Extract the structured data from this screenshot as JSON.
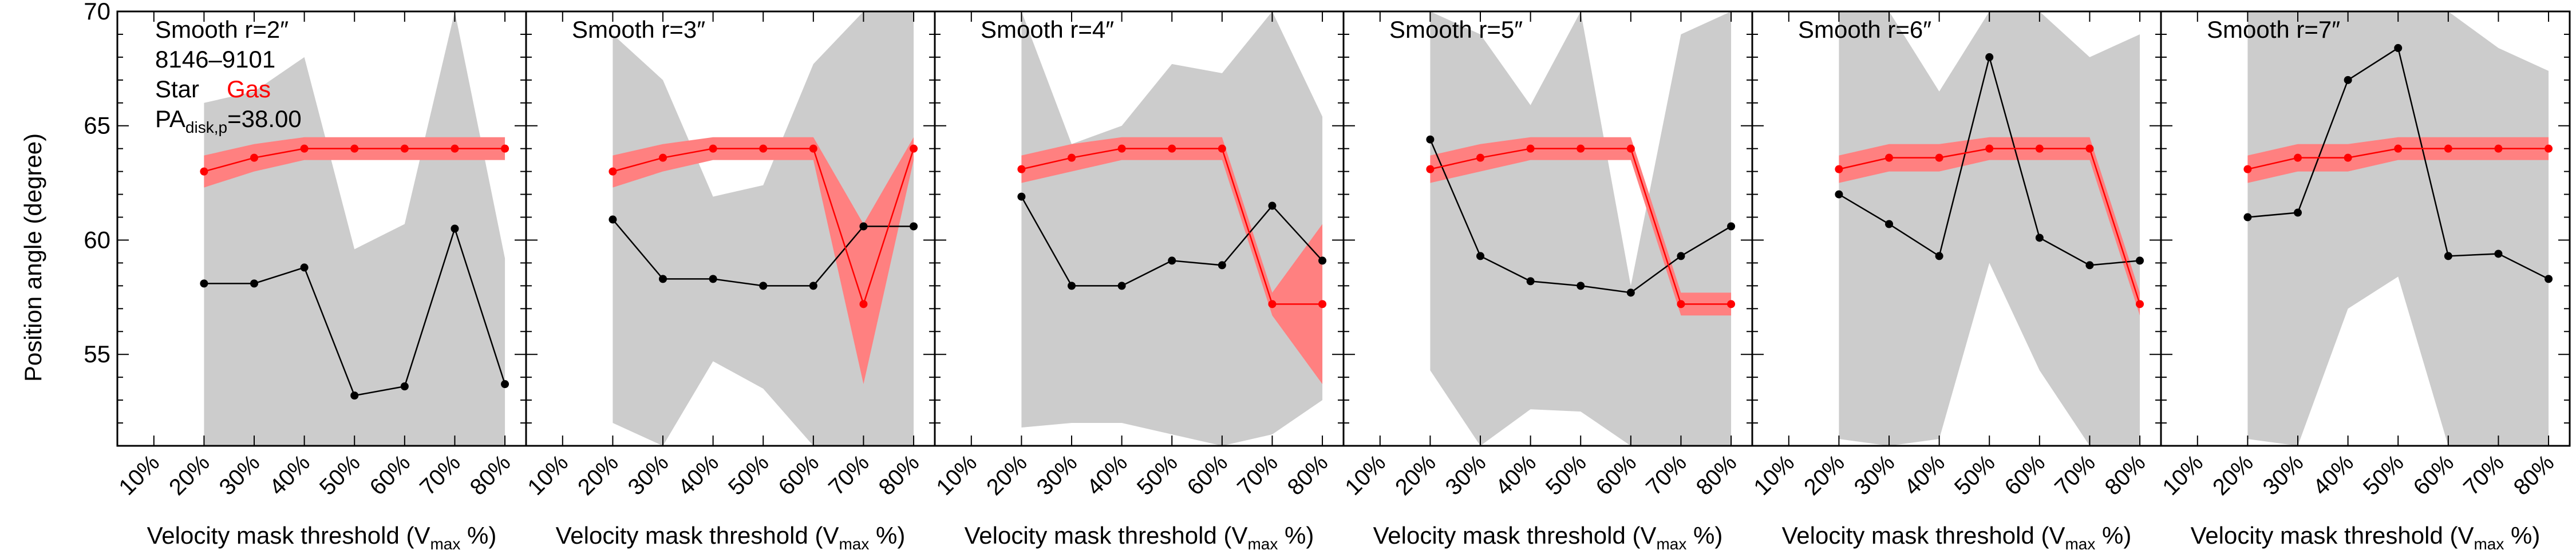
{
  "figure": {
    "ylabel": "Position angle (degree)",
    "xlabel_main": "Velocity mask threshold (V",
    "xlabel_sub": "max",
    "xlabel_end": " %)",
    "annot": {
      "plateifu": "8146–9101",
      "star_label": "Star",
      "gas_label": "Gas",
      "pa_main": "PA",
      "pa_sub": "disk,p",
      "pa_value": "=38.00"
    },
    "colors": {
      "star": "#000000",
      "gas": "#ff0000",
      "gas_band": "#ff8080",
      "star_band": "#cccccc",
      "gas_label": "#ff0000"
    }
  },
  "chart_data": {
    "type": "line",
    "categories": [
      "10%",
      "20%",
      "30%",
      "40%",
      "50%",
      "60%",
      "70%",
      "80%"
    ],
    "ylim": [
      51,
      70
    ],
    "yticks": [
      55,
      60,
      65,
      70
    ],
    "grid": false,
    "xlabel": "Velocity mask threshold (Vmax %)",
    "ylabel": "Position angle (degree)",
    "panels": [
      {
        "title": "Smooth r=2″",
        "series": [
          {
            "name": "Star",
            "x": [
              "20%",
              "30%",
              "40%",
              "50%",
              "60%",
              "70%",
              "80%"
            ],
            "values": [
              58.1,
              58.1,
              58.8,
              53.2,
              53.6,
              60.5,
              53.7
            ],
            "band_low": [
              51,
              51,
              51,
              51,
              51,
              51,
              51
            ],
            "band_high": [
              66.0,
              66.5,
              68.0,
              59.6,
              60.7,
              70.0,
              59.2
            ]
          },
          {
            "name": "Gas",
            "x": [
              "20%",
              "30%",
              "40%",
              "50%",
              "60%",
              "70%",
              "80%"
            ],
            "values": [
              63.0,
              63.6,
              64.0,
              64.0,
              64.0,
              64.0,
              64.0
            ],
            "band_low": [
              62.3,
              63.0,
              63.5,
              63.5,
              63.5,
              63.5,
              63.5
            ],
            "band_high": [
              63.7,
              64.2,
              64.5,
              64.5,
              64.5,
              64.5,
              64.5
            ]
          }
        ]
      },
      {
        "title": "Smooth r=3″",
        "series": [
          {
            "name": "Star",
            "x": [
              "20%",
              "30%",
              "40%",
              "50%",
              "60%",
              "70%",
              "80%"
            ],
            "values": [
              60.9,
              58.3,
              58.3,
              58.0,
              58.0,
              60.6,
              60.6
            ],
            "band_low": [
              52.0,
              51.0,
              54.7,
              53.5,
              51.0,
              51.0,
              51.0
            ],
            "band_high": [
              69.0,
              67.0,
              61.9,
              62.4,
              67.7,
              70.0,
              70.0
            ]
          },
          {
            "name": "Gas",
            "x": [
              "20%",
              "30%",
              "40%",
              "50%",
              "60%",
              "70%",
              "80%"
            ],
            "values": [
              63.0,
              63.6,
              64.0,
              64.0,
              64.0,
              57.2,
              64.0
            ],
            "band_low": [
              62.3,
              63.0,
              63.5,
              63.5,
              63.5,
              53.7,
              63.5
            ],
            "band_high": [
              63.7,
              64.2,
              64.5,
              64.5,
              64.5,
              60.7,
              64.5
            ]
          }
        ]
      },
      {
        "title": "Smooth r=4″",
        "series": [
          {
            "name": "Star",
            "x": [
              "20%",
              "30%",
              "40%",
              "50%",
              "60%",
              "70%",
              "80%"
            ],
            "values": [
              61.9,
              58.0,
              58.0,
              59.1,
              58.9,
              61.5,
              59.1
            ],
            "band_low": [
              51.8,
              52.0,
              52.0,
              51.5,
              51.0,
              51.5,
              53.0
            ],
            "band_high": [
              70.0,
              64.2,
              65.0,
              67.7,
              67.3,
              70.0,
              65.4
            ]
          },
          {
            "name": "Gas",
            "x": [
              "20%",
              "30%",
              "40%",
              "50%",
              "60%",
              "70%",
              "80%"
            ],
            "values": [
              63.1,
              63.6,
              64.0,
              64.0,
              64.0,
              57.2,
              57.2
            ],
            "band_low": [
              62.5,
              63.0,
              63.5,
              63.5,
              63.5,
              56.7,
              53.7
            ],
            "band_high": [
              63.7,
              64.2,
              64.5,
              64.5,
              64.5,
              57.7,
              60.7
            ]
          }
        ]
      },
      {
        "title": "Smooth r=5″",
        "series": [
          {
            "name": "Star",
            "x": [
              "20%",
              "30%",
              "40%",
              "50%",
              "60%",
              "70%",
              "80%"
            ],
            "values": [
              64.4,
              59.3,
              58.2,
              58.0,
              57.7,
              59.3,
              60.6
            ],
            "band_low": [
              54.3,
              51.0,
              52.6,
              52.5,
              51.0,
              51.0,
              51.0
            ],
            "band_high": [
              70.0,
              69.0,
              65.9,
              70.0,
              58.0,
              69.0,
              70.0
            ]
          },
          {
            "name": "Gas",
            "x": [
              "20%",
              "30%",
              "40%",
              "50%",
              "60%",
              "70%",
              "80%"
            ],
            "values": [
              63.1,
              63.6,
              64.0,
              64.0,
              64.0,
              57.2,
              57.2
            ],
            "band_low": [
              62.5,
              63.0,
              63.5,
              63.5,
              63.5,
              56.7,
              56.7
            ],
            "band_high": [
              63.7,
              64.2,
              64.5,
              64.5,
              64.5,
              57.7,
              57.7
            ]
          }
        ]
      },
      {
        "title": "Smooth r=6″",
        "series": [
          {
            "name": "Star",
            "x": [
              "20%",
              "30%",
              "40%",
              "50%",
              "60%",
              "70%",
              "80%"
            ],
            "values": [
              62.0,
              60.7,
              59.3,
              68.0,
              60.1,
              58.9,
              59.1
            ],
            "band_low": [
              51.3,
              51.0,
              51.3,
              59.0,
              54.3,
              51.0,
              51.0
            ],
            "band_high": [
              70.0,
              70.0,
              66.5,
              70.0,
              70.0,
              68.0,
              69.0
            ]
          },
          {
            "name": "Gas",
            "x": [
              "20%",
              "30%",
              "40%",
              "50%",
              "60%",
              "70%",
              "80%"
            ],
            "values": [
              63.1,
              63.6,
              63.6,
              64.0,
              64.0,
              64.0,
              57.2
            ],
            "band_low": [
              62.5,
              63.0,
              63.0,
              63.5,
              63.5,
              63.5,
              56.7
            ],
            "band_high": [
              63.7,
              64.2,
              64.2,
              64.5,
              64.5,
              64.5,
              57.7
            ]
          }
        ]
      },
      {
        "title": "Smooth r=7″",
        "series": [
          {
            "name": "Star",
            "x": [
              "20%",
              "30%",
              "40%",
              "50%",
              "60%",
              "70%",
              "80%"
            ],
            "values": [
              61.0,
              61.2,
              67.0,
              68.4,
              59.3,
              59.4,
              58.3
            ],
            "band_low": [
              51.3,
              51.0,
              57.0,
              58.4,
              51.0,
              51.0,
              51.0
            ],
            "band_high": [
              70.0,
              70.0,
              70.0,
              70.0,
              70.0,
              68.4,
              67.4
            ]
          },
          {
            "name": "Gas",
            "x": [
              "20%",
              "30%",
              "40%",
              "50%",
              "60%",
              "70%",
              "80%"
            ],
            "values": [
              63.1,
              63.6,
              63.6,
              64.0,
              64.0,
              64.0,
              64.0
            ],
            "band_low": [
              62.5,
              63.0,
              63.0,
              63.5,
              63.5,
              63.5,
              63.5
            ],
            "band_high": [
              63.7,
              64.2,
              64.2,
              64.5,
              64.5,
              64.5,
              64.5
            ]
          }
        ]
      }
    ]
  }
}
